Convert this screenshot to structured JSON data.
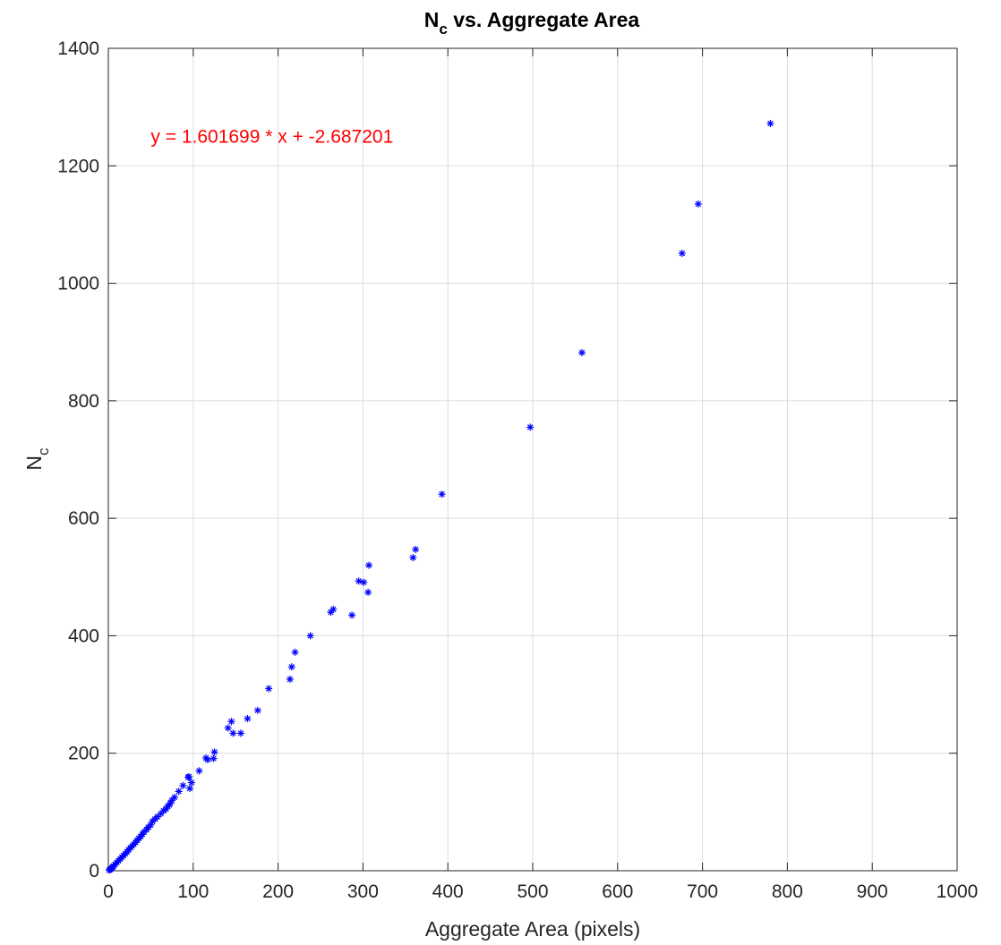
{
  "chart_data": {
    "type": "scatter",
    "title": "N",
    "title_subscript": "c",
    "title_rest": " vs. Aggregate Area",
    "xlabel": "Aggregate Area (pixels)",
    "ylabel": "N",
    "ylabel_subscript": "c",
    "xlim": [
      0,
      1000
    ],
    "ylim": [
      0,
      1400
    ],
    "xticks": [
      0,
      100,
      200,
      300,
      400,
      500,
      600,
      700,
      800,
      900,
      1000
    ],
    "xtick_labels": [
      "0",
      "100",
      "200",
      "300",
      "400",
      "500",
      "600",
      "700",
      "800",
      "900",
      "1000"
    ],
    "yticks": [
      0,
      200,
      400,
      600,
      800,
      1000,
      1200,
      1400
    ],
    "ytick_labels": [
      "0",
      "200",
      "400",
      "600",
      "800",
      "1000",
      "1200",
      "1400"
    ],
    "grid": true,
    "marker": "asterisk",
    "marker_color": "#0000ff",
    "annotation": {
      "text": "y = 1.601699 * x + -2.687201",
      "x": 50,
      "y": 1250,
      "color": "#ff0000"
    },
    "series": [
      {
        "x": [
          780,
          695,
          676,
          558,
          497,
          393,
          362,
          359,
          307,
          306,
          301,
          295,
          287,
          265,
          262,
          238,
          220,
          216,
          214,
          189,
          176,
          164,
          156,
          147,
          145,
          141,
          125,
          124,
          117,
          115,
          107,
          98,
          96,
          95,
          94,
          88,
          83,
          78,
          75,
          73,
          72,
          70,
          68,
          65,
          62,
          58,
          55,
          52,
          50,
          47,
          45,
          42,
          40,
          38,
          36,
          34,
          32,
          30,
          28,
          26,
          24,
          22,
          20,
          18,
          16,
          14,
          12,
          10,
          8,
          6,
          5,
          4,
          3,
          2,
          1
        ],
        "y": [
          1272,
          1135,
          1051,
          882,
          755,
          641,
          547,
          533,
          520,
          474,
          491,
          493,
          435,
          445,
          440,
          400,
          372,
          347,
          326,
          310,
          273,
          259,
          234,
          234,
          254,
          243,
          202,
          191,
          189,
          192,
          170,
          150,
          140,
          160,
          159,
          145,
          135,
          125,
          120,
          115,
          112,
          110,
          105,
          102,
          97,
          92,
          88,
          84,
          78,
          74,
          70,
          66,
          62,
          58,
          55,
          52,
          48,
          45,
          42,
          39,
          36,
          32,
          29,
          26,
          23,
          20,
          17,
          14,
          11,
          8,
          6,
          4,
          3,
          2,
          1
        ]
      }
    ]
  }
}
